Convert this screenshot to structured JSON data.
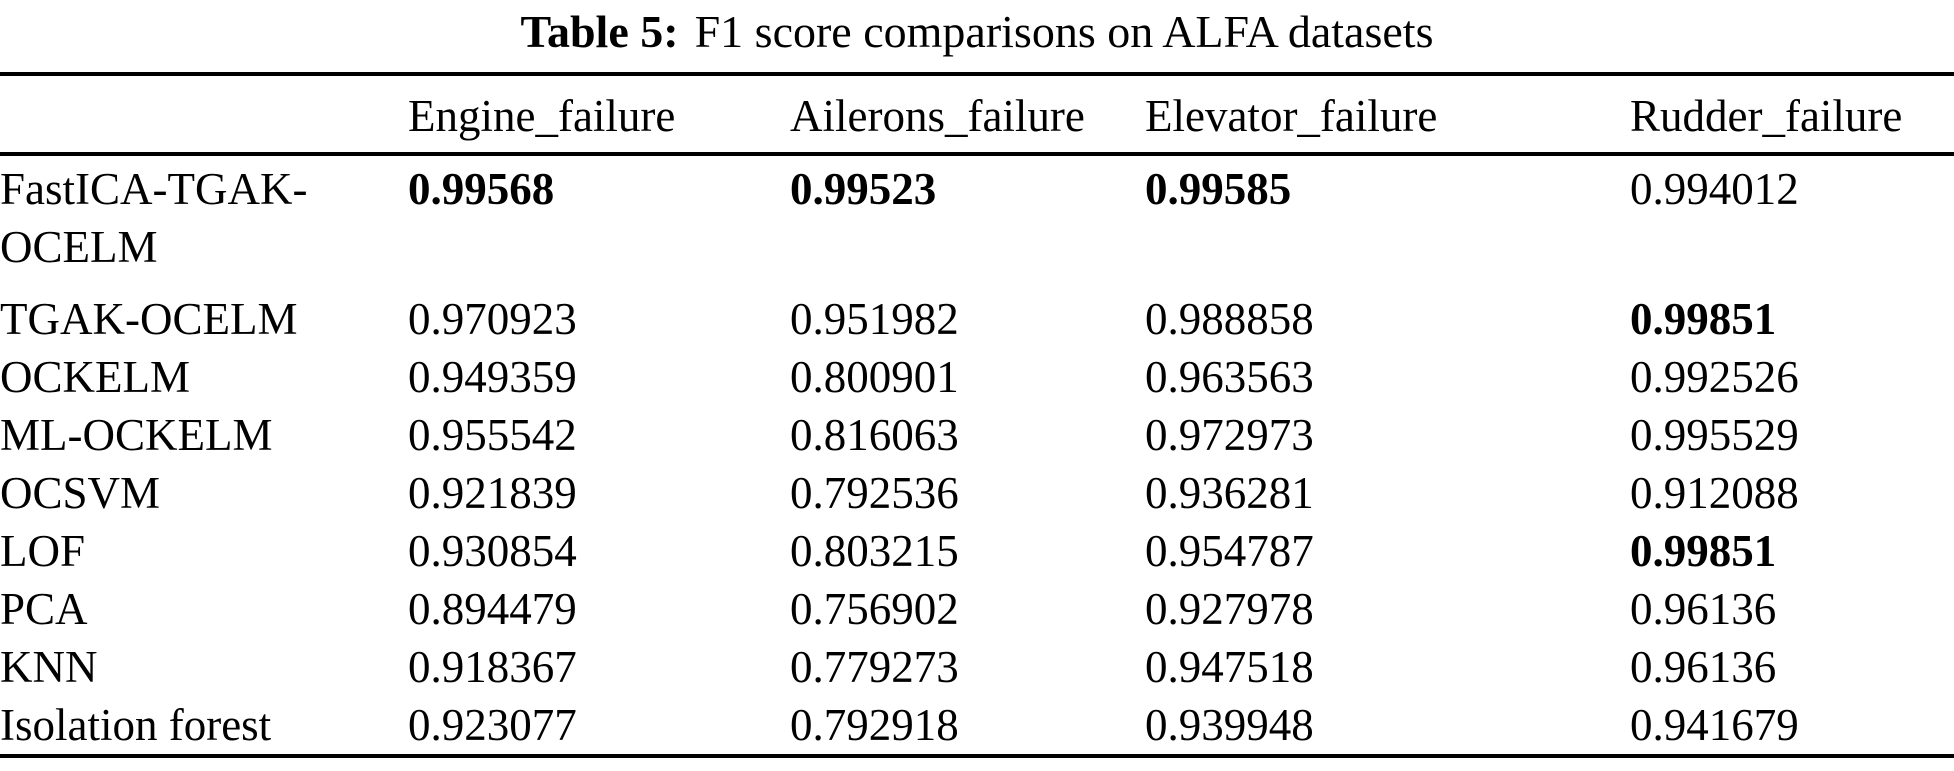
{
  "caption": {
    "label": "Table 5:",
    "text": "F1 score comparisons on ALFA datasets"
  },
  "table": {
    "columns": [
      "",
      "Engine_failure",
      "Ailerons_failure",
      "Elevator_failure",
      "Rudder_failure"
    ],
    "rows": [
      {
        "method": "FastICA-TGAK-OCELM",
        "values": [
          "0.99568",
          "0.99523",
          "0.99585",
          "0.994012"
        ],
        "bold": [
          true,
          true,
          true,
          false
        ]
      },
      {
        "method": "TGAK-OCELM",
        "values": [
          "0.970923",
          "0.951982",
          "0.988858",
          "0.99851"
        ],
        "bold": [
          false,
          false,
          false,
          true
        ]
      },
      {
        "method": "OCKELM",
        "values": [
          "0.949359",
          "0.800901",
          "0.963563",
          "0.992526"
        ],
        "bold": [
          false,
          false,
          false,
          false
        ]
      },
      {
        "method": "ML-OCKELM",
        "values": [
          "0.955542",
          "0.816063",
          "0.972973",
          "0.995529"
        ],
        "bold": [
          false,
          false,
          false,
          false
        ]
      },
      {
        "method": "OCSVM",
        "values": [
          "0.921839",
          "0.792536",
          "0.936281",
          "0.912088"
        ],
        "bold": [
          false,
          false,
          false,
          false
        ]
      },
      {
        "method": "LOF",
        "values": [
          "0.930854",
          "0.803215",
          "0.954787",
          "0.99851"
        ],
        "bold": [
          false,
          false,
          false,
          true
        ]
      },
      {
        "method": "PCA",
        "values": [
          "0.894479",
          "0.756902",
          "0.927978",
          "0.96136"
        ],
        "bold": [
          false,
          false,
          false,
          false
        ]
      },
      {
        "method": "KNN",
        "values": [
          "0.918367",
          "0.779273",
          "0.947518",
          "0.96136"
        ],
        "bold": [
          false,
          false,
          false,
          false
        ]
      },
      {
        "method": "Isolation forest",
        "values": [
          "0.923077",
          "0.792918",
          "0.939948",
          "0.941679"
        ],
        "bold": [
          false,
          false,
          false,
          false
        ]
      }
    ]
  }
}
